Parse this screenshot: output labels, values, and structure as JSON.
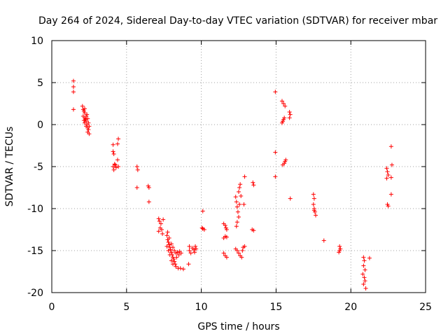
{
  "chart_data": {
    "type": "scatter",
    "title": "Day 264 of 2024, Sidereal Day-to-day VTEC variation (SDTVAR) for receiver mbar",
    "xlabel": "GPS time / hours",
    "ylabel": "SDTVAR / TECUs",
    "xlim": [
      0,
      25
    ],
    "ylim": [
      -20,
      10
    ],
    "xticks": [
      0,
      5,
      10,
      15,
      20,
      25
    ],
    "yticks": [
      -20,
      -15,
      -10,
      -5,
      0,
      5,
      10
    ],
    "grid": true,
    "marker": "+",
    "color": "#ff0000",
    "series": [
      {
        "name": "SDTVAR",
        "points": [
          [
            1.45,
            5.2
          ],
          [
            1.45,
            4.5
          ],
          [
            1.45,
            3.9
          ],
          [
            1.45,
            1.8
          ],
          [
            2.05,
            2.2
          ],
          [
            2.1,
            1.8
          ],
          [
            2.15,
            1.6
          ],
          [
            2.2,
            1.4
          ],
          [
            2.1,
            1.0
          ],
          [
            2.2,
            0.8
          ],
          [
            2.25,
            0.6
          ],
          [
            2.3,
            0.4
          ],
          [
            2.2,
            0.2
          ],
          [
            2.35,
            0.0
          ],
          [
            2.3,
            -0.2
          ],
          [
            2.4,
            -0.4
          ],
          [
            2.45,
            -0.6
          ],
          [
            2.4,
            -0.9
          ],
          [
            2.5,
            -1.1
          ],
          [
            2.35,
            1.2
          ],
          [
            2.15,
            0.5
          ],
          [
            2.45,
            0.2
          ],
          [
            2.5,
            -0.2
          ],
          [
            2.2,
            1.9
          ],
          [
            2.3,
            1.0
          ],
          [
            2.4,
            0.7
          ],
          [
            4.1,
            -2.4
          ],
          [
            4.1,
            -3.2
          ],
          [
            4.15,
            -3.5
          ],
          [
            4.2,
            -4.7
          ],
          [
            4.1,
            -5.0
          ],
          [
            4.15,
            -5.4
          ],
          [
            4.3,
            -5.1
          ],
          [
            4.4,
            -2.3
          ],
          [
            4.45,
            -1.7
          ],
          [
            4.4,
            -4.2
          ],
          [
            4.45,
            -5.0
          ],
          [
            4.25,
            -4.8
          ],
          [
            5.7,
            -5.0
          ],
          [
            5.75,
            -5.4
          ],
          [
            5.7,
            -7.5
          ],
          [
            6.45,
            -7.3
          ],
          [
            6.5,
            -7.5
          ],
          [
            6.5,
            -9.2
          ],
          [
            7.15,
            -11.2
          ],
          [
            7.2,
            -11.5
          ],
          [
            7.3,
            -11.8
          ],
          [
            7.25,
            -12.3
          ],
          [
            7.15,
            -12.7
          ],
          [
            7.35,
            -12.5
          ],
          [
            7.4,
            -13.0
          ],
          [
            7.45,
            -11.3
          ],
          [
            7.7,
            -13.2
          ],
          [
            7.75,
            -13.7
          ],
          [
            7.8,
            -14.0
          ],
          [
            7.85,
            -14.3
          ],
          [
            7.9,
            -14.6
          ],
          [
            7.95,
            -14.9
          ],
          [
            8.0,
            -15.2
          ],
          [
            8.05,
            -15.5
          ],
          [
            8.1,
            -15.8
          ],
          [
            8.15,
            -16.0
          ],
          [
            8.2,
            -16.3
          ],
          [
            8.25,
            -16.6
          ],
          [
            8.3,
            -16.9
          ],
          [
            8.45,
            -17.1
          ],
          [
            8.6,
            -17.1
          ],
          [
            8.8,
            -17.2
          ],
          [
            7.8,
            -15.0
          ],
          [
            7.9,
            -15.5
          ],
          [
            8.0,
            -14.2
          ],
          [
            8.1,
            -14.6
          ],
          [
            8.2,
            -15.0
          ],
          [
            8.3,
            -15.3
          ],
          [
            8.35,
            -15.8
          ],
          [
            8.4,
            -15.2
          ],
          [
            8.5,
            -15.5
          ],
          [
            8.55,
            -15.1
          ],
          [
            8.65,
            -15.3
          ],
          [
            7.7,
            -14.5
          ],
          [
            7.75,
            -12.8
          ],
          [
            7.85,
            -13.5
          ],
          [
            8.0,
            -16.2
          ],
          [
            8.1,
            -16.6
          ],
          [
            9.15,
            -16.6
          ],
          [
            9.2,
            -15.0
          ],
          [
            9.3,
            -15.3
          ],
          [
            9.4,
            -14.7
          ],
          [
            9.5,
            -14.9
          ],
          [
            9.6,
            -14.5
          ],
          [
            9.55,
            -15.2
          ],
          [
            9.65,
            -14.8
          ],
          [
            9.2,
            -14.5
          ],
          [
            10.1,
            -10.3
          ],
          [
            10.05,
            -12.3
          ],
          [
            10.1,
            -12.4
          ],
          [
            10.2,
            -12.5
          ],
          [
            11.5,
            -11.8
          ],
          [
            11.6,
            -12.0
          ],
          [
            11.65,
            -12.3
          ],
          [
            11.7,
            -12.5
          ],
          [
            11.6,
            -13.3
          ],
          [
            11.7,
            -13.4
          ],
          [
            11.5,
            -13.5
          ],
          [
            11.5,
            -15.3
          ],
          [
            11.6,
            -15.6
          ],
          [
            11.7,
            -15.8
          ],
          [
            12.3,
            -8.6
          ],
          [
            12.35,
            -9.2
          ],
          [
            12.4,
            -9.8
          ],
          [
            12.45,
            -10.4
          ],
          [
            12.5,
            -11.0
          ],
          [
            12.4,
            -11.6
          ],
          [
            12.35,
            -12.1
          ],
          [
            12.5,
            -8.0
          ],
          [
            12.55,
            -7.5
          ],
          [
            12.6,
            -7.1
          ],
          [
            12.65,
            -8.5
          ],
          [
            12.55,
            -9.5
          ],
          [
            12.3,
            -14.8
          ],
          [
            12.4,
            -15.0
          ],
          [
            12.5,
            -15.3
          ],
          [
            12.6,
            -15.6
          ],
          [
            12.7,
            -15.8
          ],
          [
            12.75,
            -15.0
          ],
          [
            12.8,
            -14.6
          ],
          [
            12.9,
            -6.2
          ],
          [
            12.85,
            -9.5
          ],
          [
            12.9,
            -14.5
          ],
          [
            13.45,
            -6.9
          ],
          [
            13.5,
            -7.2
          ],
          [
            13.4,
            -12.5
          ],
          [
            13.5,
            -12.6
          ],
          [
            14.95,
            3.9
          ],
          [
            14.95,
            -3.3
          ],
          [
            14.95,
            -6.2
          ],
          [
            15.4,
            0.2
          ],
          [
            15.45,
            0.4
          ],
          [
            15.5,
            0.6
          ],
          [
            15.55,
            0.8
          ],
          [
            15.4,
            2.8
          ],
          [
            15.5,
            2.5
          ],
          [
            15.6,
            2.2
          ],
          [
            15.45,
            -4.8
          ],
          [
            15.55,
            -4.6
          ],
          [
            15.6,
            -4.4
          ],
          [
            15.65,
            -4.2
          ],
          [
            15.9,
            1.5
          ],
          [
            15.95,
            1.2
          ],
          [
            15.9,
            0.8
          ],
          [
            15.95,
            -8.8
          ],
          [
            17.5,
            -8.3
          ],
          [
            17.55,
            -8.8
          ],
          [
            17.5,
            -9.5
          ],
          [
            17.55,
            -10.0
          ],
          [
            17.6,
            -10.4
          ],
          [
            17.65,
            -10.8
          ],
          [
            17.55,
            -10.2
          ],
          [
            18.2,
            -13.8
          ],
          [
            19.25,
            -14.5
          ],
          [
            19.3,
            -14.8
          ],
          [
            19.25,
            -15.0
          ],
          [
            19.2,
            -15.2
          ],
          [
            20.85,
            -15.8
          ],
          [
            20.9,
            -16.2
          ],
          [
            20.85,
            -16.8
          ],
          [
            20.95,
            -17.3
          ],
          [
            20.8,
            -17.8
          ],
          [
            20.9,
            -18.2
          ],
          [
            20.95,
            -18.6
          ],
          [
            20.85,
            -19.0
          ],
          [
            21.0,
            -19.5
          ],
          [
            21.25,
            -15.9
          ],
          [
            22.4,
            -5.2
          ],
          [
            22.45,
            -5.6
          ],
          [
            22.5,
            -6.0
          ],
          [
            22.4,
            -6.4
          ],
          [
            22.45,
            -9.5
          ],
          [
            22.5,
            -9.7
          ],
          [
            22.7,
            -2.6
          ],
          [
            22.75,
            -4.8
          ],
          [
            22.7,
            -6.3
          ],
          [
            22.7,
            -8.3
          ]
        ]
      }
    ]
  }
}
